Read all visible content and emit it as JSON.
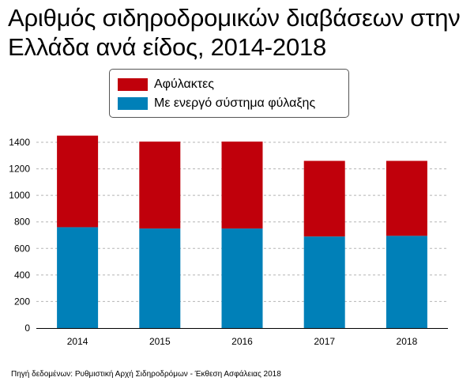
{
  "title": "Αριθμός σιδηροδρομικών διαβάσεων στην\n Ελλάδα ανά είδος, 2014-2018",
  "legend": {
    "items": [
      {
        "label": "Αφύλακτες",
        "color": "#c0000b"
      },
      {
        "label": "Με ενεργό σύστημα φύλαξης",
        "color": "#0080b8"
      }
    ],
    "placement": "top-center"
  },
  "source": "Πηγή δεδομένων:  Ρυθμιστική Αρχή Σιδηροδρόμων - Έκθεση Ασφάλειας 2018",
  "chart_data": {
    "type": "bar",
    "stacked": true,
    "categories": [
      "2014",
      "2015",
      "2016",
      "2017",
      "2018"
    ],
    "series": [
      {
        "name": "Με ενεργό σύστημα φύλαξης",
        "color": "#0080b8",
        "values": [
          760,
          750,
          750,
          690,
          695
        ]
      },
      {
        "name": "Αφύλακτες",
        "color": "#c0000b",
        "values": [
          690,
          655,
          655,
          570,
          565
        ]
      }
    ],
    "ylim": [
      0,
      1400
    ],
    "yticks": [
      0,
      200,
      400,
      600,
      800,
      1000,
      1200,
      1400
    ],
    "grid": true,
    "xlabel": "",
    "ylabel": ""
  }
}
